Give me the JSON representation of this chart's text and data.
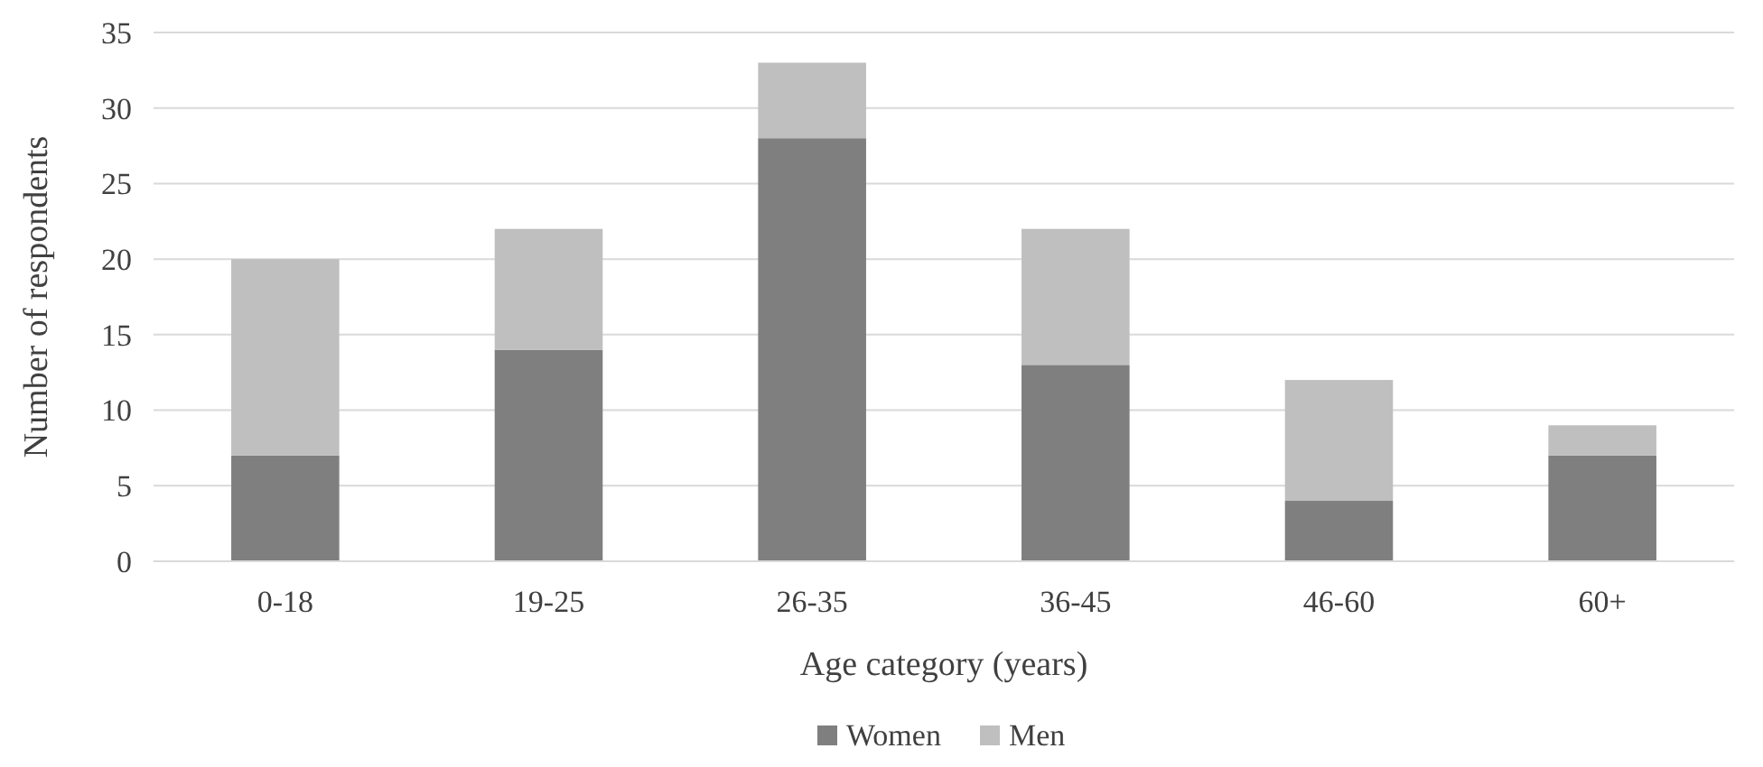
{
  "chart_data": {
    "type": "bar",
    "stacked": true,
    "xlabel": "Age category (years)",
    "ylabel": "Number of respondents",
    "categories": [
      "0-18",
      "19-25",
      "26-35",
      "36-45",
      "46-60",
      "60+"
    ],
    "series": [
      {
        "name": "Women",
        "color": "#7f7f7f",
        "values": [
          7,
          14,
          28,
          13,
          4,
          7
        ]
      },
      {
        "name": "Men",
        "color": "#bfbfbf",
        "values": [
          13,
          8,
          5,
          9,
          8,
          2
        ]
      }
    ],
    "ylim": [
      0,
      35
    ],
    "yticks": [
      0,
      5,
      10,
      15,
      20,
      25,
      30,
      35
    ],
    "grid": "y",
    "legend": "bottom"
  }
}
